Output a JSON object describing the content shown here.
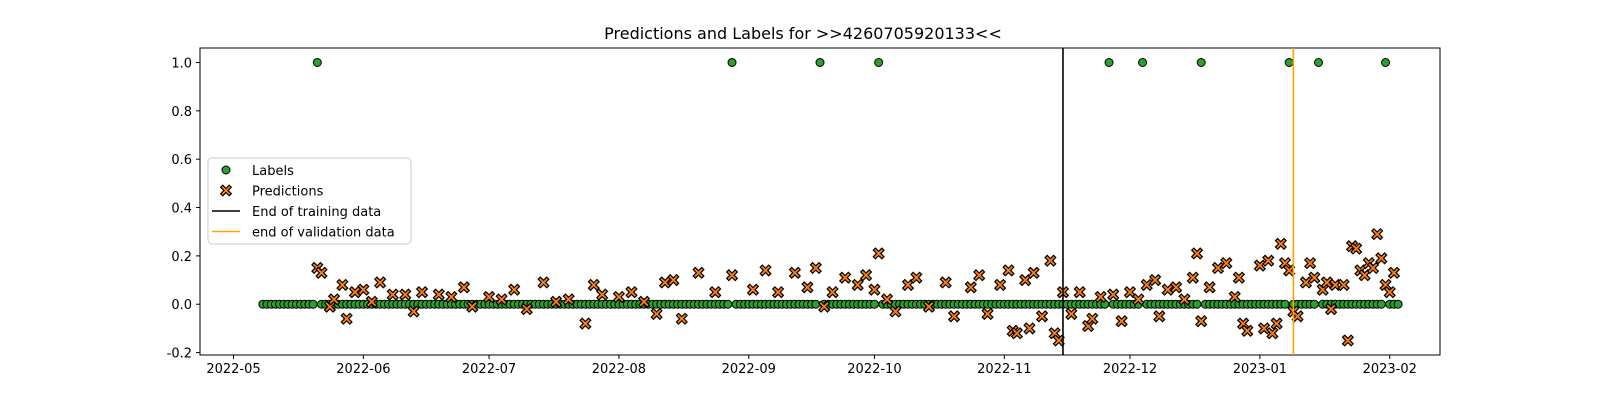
{
  "chart_data": {
    "type": "scatter",
    "title": "Predictions and Labels for >>4260705920133<<",
    "xlabel": "",
    "ylabel": "",
    "x_axis_type": "date",
    "xlim": [
      "2022-04-23",
      "2023-02-13"
    ],
    "ylim": [
      -0.21,
      1.06
    ],
    "x_ticks": [
      "2022-05",
      "2022-06",
      "2022-07",
      "2022-08",
      "2022-09",
      "2022-10",
      "2022-11",
      "2022-12",
      "2023-01",
      "2023-02"
    ],
    "y_ticks": [
      "-0.2",
      "0.0",
      "0.2",
      "0.4",
      "0.6",
      "0.8",
      "1.0"
    ],
    "grid": false,
    "legend_position": "center-left",
    "date_range": [
      "2022-05-08",
      "2023-02-03"
    ],
    "series": [
      {
        "name": "Labels",
        "marker": "circle",
        "color": "#2ca02c",
        "baseline": 0,
        "positive_dates": [
          "2022-05-21",
          "2022-08-28",
          "2022-09-18",
          "2022-10-02",
          "2022-11-26",
          "2022-12-04",
          "2022-12-18",
          "2023-01-08",
          "2023-01-15",
          "2023-01-31"
        ]
      },
      {
        "name": "Predictions",
        "marker": "x",
        "color": "#ff7f0e",
        "points": [
          [
            "2022-05-21",
            0.15
          ],
          [
            "2022-05-22",
            0.13
          ],
          [
            "2022-05-24",
            -0.01
          ],
          [
            "2022-05-25",
            0.02
          ],
          [
            "2022-05-27",
            0.08
          ],
          [
            "2022-05-28",
            -0.06
          ],
          [
            "2022-05-30",
            0.05
          ],
          [
            "2022-06-01",
            0.06
          ],
          [
            "2022-06-03",
            0.01
          ],
          [
            "2022-06-05",
            0.09
          ],
          [
            "2022-06-08",
            0.04
          ],
          [
            "2022-06-11",
            0.04
          ],
          [
            "2022-06-13",
            -0.03
          ],
          [
            "2022-06-15",
            0.05
          ],
          [
            "2022-06-19",
            0.04
          ],
          [
            "2022-06-22",
            0.03
          ],
          [
            "2022-06-25",
            0.07
          ],
          [
            "2022-06-27",
            -0.01
          ],
          [
            "2022-07-01",
            0.03
          ],
          [
            "2022-07-04",
            0.02
          ],
          [
            "2022-07-07",
            0.06
          ],
          [
            "2022-07-10",
            -0.02
          ],
          [
            "2022-07-14",
            0.09
          ],
          [
            "2022-07-17",
            0.01
          ],
          [
            "2022-07-20",
            0.02
          ],
          [
            "2022-07-24",
            -0.08
          ],
          [
            "2022-07-26",
            0.08
          ],
          [
            "2022-07-28",
            0.04
          ],
          [
            "2022-08-01",
            0.03
          ],
          [
            "2022-08-04",
            0.05
          ],
          [
            "2022-08-07",
            0.01
          ],
          [
            "2022-08-10",
            -0.04
          ],
          [
            "2022-08-12",
            0.09
          ],
          [
            "2022-08-14",
            0.1
          ],
          [
            "2022-08-16",
            -0.06
          ],
          [
            "2022-08-20",
            0.13
          ],
          [
            "2022-08-24",
            0.05
          ],
          [
            "2022-08-28",
            0.12
          ],
          [
            "2022-09-02",
            0.06
          ],
          [
            "2022-09-05",
            0.14
          ],
          [
            "2022-09-08",
            0.05
          ],
          [
            "2022-09-12",
            0.13
          ],
          [
            "2022-09-15",
            0.07
          ],
          [
            "2022-09-17",
            0.15
          ],
          [
            "2022-09-19",
            -0.01
          ],
          [
            "2022-09-21",
            0.05
          ],
          [
            "2022-09-24",
            0.11
          ],
          [
            "2022-09-27",
            0.08
          ],
          [
            "2022-09-29",
            0.12
          ],
          [
            "2022-10-01",
            0.06
          ],
          [
            "2022-10-02",
            0.21
          ],
          [
            "2022-10-04",
            0.02
          ],
          [
            "2022-10-06",
            -0.03
          ],
          [
            "2022-10-09",
            0.08
          ],
          [
            "2022-10-11",
            0.11
          ],
          [
            "2022-10-14",
            -0.01
          ],
          [
            "2022-10-18",
            0.09
          ],
          [
            "2022-10-20",
            -0.05
          ],
          [
            "2022-10-24",
            0.07
          ],
          [
            "2022-10-26",
            0.12
          ],
          [
            "2022-10-28",
            -0.04
          ],
          [
            "2022-10-31",
            0.08
          ],
          [
            "2022-11-02",
            0.14
          ],
          [
            "2022-11-03",
            -0.11
          ],
          [
            "2022-11-04",
            -0.12
          ],
          [
            "2022-11-06",
            0.1
          ],
          [
            "2022-11-07",
            -0.1
          ],
          [
            "2022-11-08",
            0.13
          ],
          [
            "2022-11-10",
            -0.05
          ],
          [
            "2022-11-12",
            0.18
          ],
          [
            "2022-11-13",
            -0.12
          ],
          [
            "2022-11-14",
            -0.15
          ],
          [
            "2022-11-15",
            0.05
          ],
          [
            "2022-11-17",
            -0.04
          ],
          [
            "2022-11-19",
            0.05
          ],
          [
            "2022-11-21",
            -0.09
          ],
          [
            "2022-11-22",
            -0.06
          ],
          [
            "2022-11-24",
            0.03
          ],
          [
            "2022-11-27",
            0.04
          ],
          [
            "2022-11-29",
            -0.07
          ],
          [
            "2022-12-01",
            0.05
          ],
          [
            "2022-12-03",
            0.02
          ],
          [
            "2022-12-05",
            0.08
          ],
          [
            "2022-12-07",
            0.1
          ],
          [
            "2022-12-08",
            -0.05
          ],
          [
            "2022-12-10",
            0.06
          ],
          [
            "2022-12-12",
            0.07
          ],
          [
            "2022-12-14",
            0.02
          ],
          [
            "2022-12-16",
            0.11
          ],
          [
            "2022-12-17",
            0.21
          ],
          [
            "2022-12-18",
            -0.07
          ],
          [
            "2022-12-20",
            0.07
          ],
          [
            "2022-12-22",
            0.15
          ],
          [
            "2022-12-24",
            0.17
          ],
          [
            "2022-12-26",
            0.03
          ],
          [
            "2022-12-27",
            0.11
          ],
          [
            "2022-12-28",
            -0.08
          ],
          [
            "2022-12-29",
            -0.11
          ],
          [
            "2023-01-01",
            0.16
          ],
          [
            "2023-01-02",
            -0.1
          ],
          [
            "2023-01-03",
            0.18
          ],
          [
            "2023-01-04",
            -0.12
          ],
          [
            "2023-01-05",
            -0.08
          ],
          [
            "2023-01-06",
            0.25
          ],
          [
            "2023-01-07",
            0.17
          ],
          [
            "2023-01-08",
            0.14
          ],
          [
            "2023-01-09",
            -0.03
          ],
          [
            "2023-01-10",
            -0.05
          ],
          [
            "2023-01-12",
            0.09
          ],
          [
            "2023-01-13",
            0.17
          ],
          [
            "2023-01-14",
            0.11
          ],
          [
            "2023-01-16",
            0.06
          ],
          [
            "2023-01-17",
            0.09
          ],
          [
            "2023-01-18",
            -0.02
          ],
          [
            "2023-01-19",
            0.08
          ],
          [
            "2023-01-21",
            0.08
          ],
          [
            "2023-01-22",
            -0.15
          ],
          [
            "2023-01-23",
            0.24
          ],
          [
            "2023-01-24",
            0.23
          ],
          [
            "2023-01-25",
            0.14
          ],
          [
            "2023-01-26",
            0.12
          ],
          [
            "2023-01-27",
            0.17
          ],
          [
            "2023-01-28",
            0.15
          ],
          [
            "2023-01-29",
            0.29
          ],
          [
            "2023-01-30",
            0.19
          ],
          [
            "2023-01-31",
            0.08
          ],
          [
            "2023-02-01",
            0.05
          ],
          [
            "2023-02-02",
            0.13
          ]
        ]
      },
      {
        "name": "End of training data",
        "type": "vline",
        "color": "#000000",
        "x": "2022-11-15"
      },
      {
        "name": "end of validation data",
        "type": "vline",
        "color": "#ffa500",
        "x": "2023-01-09"
      }
    ]
  }
}
